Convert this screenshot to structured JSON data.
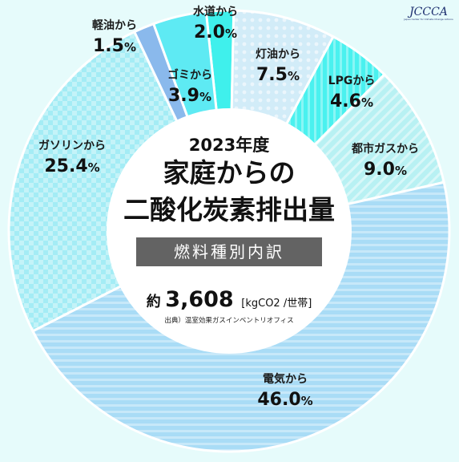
{
  "logo": {
    "text": "JCCCA",
    "subtitle": "Japan Center for Climate Change Actions"
  },
  "chart_data": {
    "type": "pie",
    "style": "donut",
    "year_label": "2023年度",
    "title_line1": "家庭からの",
    "title_line2": "二酸化炭素排出量",
    "band_label": "燃料種別内訳",
    "total_prefix": "約",
    "total_value": "3,608",
    "total_unit": "[kgCO2 /世帯]",
    "source": "出典）温室効果ガスインベントリオフィス",
    "percent_sign": "%",
    "slices": [
      {
        "name": "水道から",
        "value": 2.0,
        "display": "2.0",
        "color": "#3ff0ec",
        "pattern": "none"
      },
      {
        "name": "灯油から",
        "value": 7.5,
        "display": "7.5",
        "color": "#d2ecf8",
        "pattern": "dots"
      },
      {
        "name": "LPGから",
        "value": 4.6,
        "display": "4.6",
        "color": "#4af1ef",
        "pattern": "vstripes"
      },
      {
        "name": "都市ガスから",
        "value": 9.0,
        "display": "9.0",
        "color": "#b8f1f3",
        "pattern": "diag"
      },
      {
        "name": "電気から",
        "value": 46.0,
        "display": "46.0",
        "color": "#a9dcf6",
        "pattern": "hstripes"
      },
      {
        "name": "ガソリンから",
        "value": 25.4,
        "display": "25.4",
        "color": "#a4ecf5",
        "pattern": "checker"
      },
      {
        "name": "軽油から",
        "value": 1.5,
        "display": "1.5",
        "color": "#8ab9ec",
        "pattern": "none"
      },
      {
        "name": "ゴミから",
        "value": 3.9,
        "display": "3.9",
        "color": "#5eeaf3",
        "pattern": "none"
      }
    ]
  }
}
